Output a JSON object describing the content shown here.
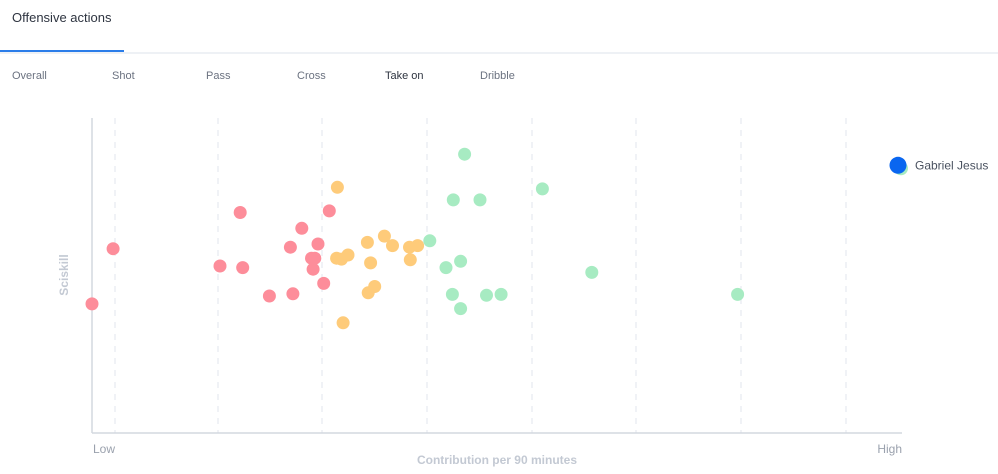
{
  "tab": {
    "label": "Offensive actions"
  },
  "subtabs": [
    "Overall",
    "Shot",
    "Pass",
    "Cross",
    "Take on",
    "Dribble"
  ],
  "active_subtab": 4,
  "chart_data": {
    "type": "scatter",
    "xlabel": "Contribution per 90 minutes",
    "ylabel": "Sciskill",
    "x_low_label": "Low",
    "x_high_label": "High",
    "xlim": [
      0,
      1
    ],
    "ylim": [
      0,
      1
    ],
    "grid": "vertical-dashed",
    "colors": {
      "red": "#fd8d9a",
      "orange": "#fecb7a",
      "green": "#a7ebc2",
      "highlight": "#0a66f0",
      "grid": "#e2e6ec",
      "axis": "#d3d8df"
    },
    "highlight": {
      "name": "Gabriel Jesus",
      "x": 0.995,
      "y": 0.85
    },
    "points": [
      {
        "x": 0.0,
        "y": 0.41,
        "c": "red"
      },
      {
        "x": 0.026,
        "y": 0.585,
        "c": "red"
      },
      {
        "x": 0.158,
        "y": 0.53,
        "c": "red"
      },
      {
        "x": 0.183,
        "y": 0.7,
        "c": "red"
      },
      {
        "x": 0.186,
        "y": 0.525,
        "c": "red"
      },
      {
        "x": 0.219,
        "y": 0.435,
        "c": "red"
      },
      {
        "x": 0.248,
        "y": 0.442,
        "c": "red"
      },
      {
        "x": 0.245,
        "y": 0.59,
        "c": "red"
      },
      {
        "x": 0.259,
        "y": 0.65,
        "c": "red"
      },
      {
        "x": 0.271,
        "y": 0.555,
        "c": "red"
      },
      {
        "x": 0.275,
        "y": 0.555,
        "c": "red"
      },
      {
        "x": 0.273,
        "y": 0.52,
        "c": "red"
      },
      {
        "x": 0.279,
        "y": 0.6,
        "c": "red"
      },
      {
        "x": 0.286,
        "y": 0.475,
        "c": "red"
      },
      {
        "x": 0.293,
        "y": 0.705,
        "c": "red"
      },
      {
        "x": 0.303,
        "y": 0.78,
        "c": "orange"
      },
      {
        "x": 0.302,
        "y": 0.555,
        "c": "orange"
      },
      {
        "x": 0.308,
        "y": 0.552,
        "c": "orange"
      },
      {
        "x": 0.316,
        "y": 0.565,
        "c": "orange"
      },
      {
        "x": 0.31,
        "y": 0.35,
        "c": "orange"
      },
      {
        "x": 0.34,
        "y": 0.605,
        "c": "orange"
      },
      {
        "x": 0.344,
        "y": 0.54,
        "c": "orange"
      },
      {
        "x": 0.341,
        "y": 0.445,
        "c": "orange"
      },
      {
        "x": 0.349,
        "y": 0.465,
        "c": "orange"
      },
      {
        "x": 0.361,
        "y": 0.625,
        "c": "orange"
      },
      {
        "x": 0.371,
        "y": 0.595,
        "c": "orange"
      },
      {
        "x": 0.392,
        "y": 0.59,
        "c": "orange"
      },
      {
        "x": 0.393,
        "y": 0.55,
        "c": "orange"
      },
      {
        "x": 0.402,
        "y": 0.595,
        "c": "orange"
      },
      {
        "x": 0.417,
        "y": 0.61,
        "c": "green"
      },
      {
        "x": 0.437,
        "y": 0.525,
        "c": "green"
      },
      {
        "x": 0.446,
        "y": 0.74,
        "c": "green"
      },
      {
        "x": 0.445,
        "y": 0.44,
        "c": "green"
      },
      {
        "x": 0.455,
        "y": 0.545,
        "c": "green"
      },
      {
        "x": 0.455,
        "y": 0.395,
        "c": "green"
      },
      {
        "x": 0.46,
        "y": 0.885,
        "c": "green"
      },
      {
        "x": 0.479,
        "y": 0.74,
        "c": "green"
      },
      {
        "x": 0.487,
        "y": 0.437,
        "c": "green"
      },
      {
        "x": 0.505,
        "y": 0.44,
        "c": "green"
      },
      {
        "x": 0.556,
        "y": 0.775,
        "c": "green"
      },
      {
        "x": 0.617,
        "y": 0.51,
        "c": "green"
      },
      {
        "x": 0.797,
        "y": 0.44,
        "c": "green"
      }
    ]
  }
}
